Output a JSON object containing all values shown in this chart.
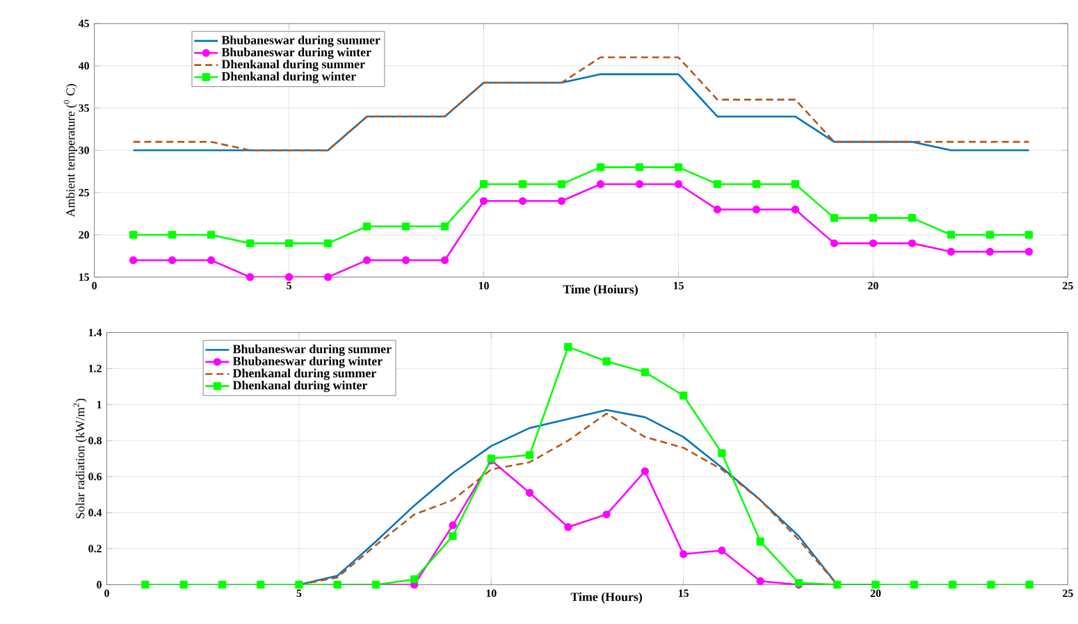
{
  "chart_data": [
    {
      "type": "line",
      "xlabel": "Time (Hoiurs)",
      "ylabel": "Ambient temperature ($^{0}$ C)",
      "xlim": [
        0,
        25
      ],
      "ylim": [
        15,
        45
      ],
      "xticks": [
        0,
        5,
        10,
        15,
        20,
        25
      ],
      "yticks": [
        15,
        20,
        25,
        30,
        35,
        40,
        45
      ],
      "grid": true,
      "legend": "top left",
      "x": [
        1,
        2,
        3,
        4,
        5,
        6,
        7,
        8,
        9,
        10,
        11,
        12,
        13,
        14,
        15,
        16,
        17,
        18,
        19,
        20,
        21,
        22,
        23,
        24
      ],
      "series": [
        {
          "name": "Bhubaneswar during summer",
          "color": "#0072bd",
          "marker": "none",
          "line_style": "solid",
          "values": [
            30,
            30,
            30,
            30,
            30,
            30,
            34,
            34,
            34,
            38,
            38,
            38,
            39,
            39,
            39,
            34,
            34,
            34,
            31,
            31,
            31,
            30,
            30,
            30
          ]
        },
        {
          "name": "Bhubaneswar during winter",
          "color": "#ff00ff",
          "marker": "circle",
          "line_style": "solid",
          "values": [
            17,
            17,
            17,
            15,
            15,
            15,
            17,
            17,
            17,
            24,
            24,
            24,
            26,
            26,
            26,
            23,
            23,
            23,
            19,
            19,
            19,
            18,
            18,
            18
          ]
        },
        {
          "name": "Dhenkanal during summer",
          "color": "#b5561b",
          "marker": "none",
          "line_style": "dashed",
          "values": [
            31,
            31,
            31,
            30,
            30,
            30,
            34,
            34,
            34,
            38,
            38,
            38,
            41,
            41,
            41,
            36,
            36,
            36,
            31,
            31,
            31,
            31,
            31,
            31
          ]
        },
        {
          "name": "Dhenkanal during winter",
          "color": "#00ff00",
          "marker": "square",
          "line_style": "solid",
          "values": [
            20,
            20,
            20,
            19,
            19,
            19,
            21,
            21,
            21,
            26,
            26,
            26,
            28,
            28,
            28,
            26,
            26,
            26,
            22,
            22,
            22,
            20,
            20,
            20
          ]
        }
      ]
    },
    {
      "type": "line",
      "xlabel": "Time (Hours)",
      "ylabel": "Solar radiation (kW/m$^{2}$)",
      "xlim": [
        0,
        25
      ],
      "ylim": [
        0,
        1.4
      ],
      "xticks": [
        0,
        5,
        10,
        15,
        20,
        25
      ],
      "yticks": [
        0,
        0.2,
        0.4,
        0.6,
        0.8,
        1,
        1.2,
        1.4
      ],
      "grid": true,
      "legend": "top left",
      "x": [
        1,
        2,
        3,
        4,
        5,
        6,
        7,
        8,
        9,
        10,
        11,
        12,
        13,
        14,
        15,
        16,
        17,
        18,
        19,
        20,
        21,
        22,
        23,
        24
      ],
      "series": [
        {
          "name": "Bhubaneswar during summer",
          "color": "#0072bd",
          "marker": "none",
          "line_style": "solid",
          "values": [
            null,
            null,
            null,
            null,
            0,
            0.05,
            0.24,
            0.44,
            0.62,
            0.77,
            0.87,
            0.92,
            0.97,
            0.93,
            0.82,
            0.65,
            0.47,
            0.27,
            0,
            0,
            null,
            null,
            null,
            null
          ]
        },
        {
          "name": "Bhubaneswar during winter",
          "color": "#ff00ff",
          "marker": "circle",
          "line_style": "solid",
          "values": [
            null,
            null,
            null,
            null,
            null,
            0,
            0,
            0,
            0.33,
            0.69,
            0.51,
            0.32,
            0.39,
            0.63,
            0.17,
            0.19,
            0.02,
            0,
            0,
            null,
            null,
            null,
            null,
            null
          ]
        },
        {
          "name": "Dhenkanal during summer",
          "color": "#b5561b",
          "marker": "none",
          "line_style": "dashed",
          "values": [
            null,
            null,
            null,
            null,
            0,
            0.04,
            0.22,
            0.39,
            0.47,
            0.64,
            0.68,
            0.8,
            0.95,
            0.82,
            0.76,
            0.64,
            0.47,
            0.25,
            0,
            0,
            null,
            null,
            null,
            null
          ]
        },
        {
          "name": "Dhenkanal during winter",
          "color": "#00ff00",
          "marker": "square",
          "line_style": "solid",
          "values": [
            0,
            0,
            0,
            0,
            0,
            0,
            0,
            0.03,
            0.27,
            0.7,
            0.72,
            1.32,
            1.24,
            1.18,
            1.05,
            0.73,
            0.24,
            0.01,
            0,
            0,
            0,
            0,
            0,
            0
          ]
        }
      ]
    }
  ]
}
